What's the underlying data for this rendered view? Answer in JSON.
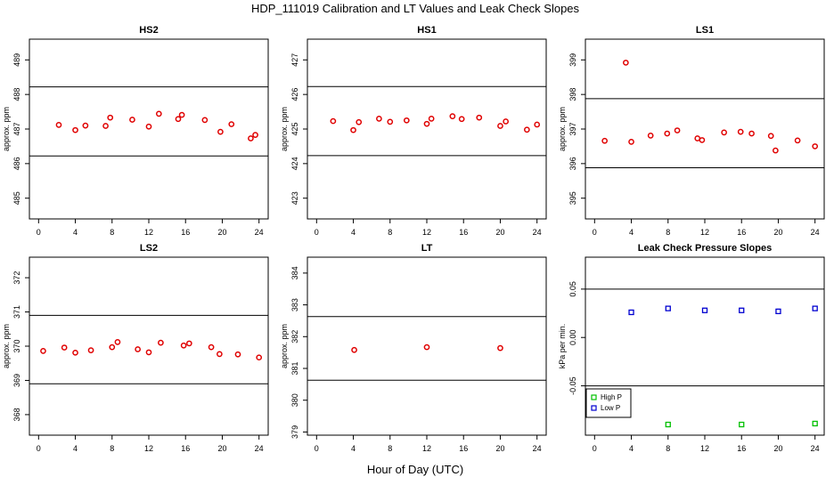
{
  "figure": {
    "title": "HDP_111019  Calibration and LT Values and Leak Check Slopes",
    "xlabel": "Hour of Day (UTC)"
  },
  "chart_data": [
    {
      "type": "scatter",
      "title": "HS2",
      "ylabel": "approx. ppm",
      "xlim": [
        -1,
        25
      ],
      "ylim": [
        484.4,
        489.6
      ],
      "xticks": [
        0,
        4,
        8,
        12,
        16,
        20,
        24
      ],
      "yticks": [
        485,
        486,
        487,
        488,
        489
      ],
      "hlines": [
        488.22,
        486.22
      ],
      "series": [
        {
          "marker": "circle",
          "color": "#e00000",
          "x": [
            2.2,
            4.0,
            5.1,
            7.3,
            7.8,
            10.2,
            12.0,
            13.1,
            15.2,
            15.6,
            18.1,
            19.8,
            21.0,
            23.1,
            23.6
          ],
          "y": [
            487.12,
            486.97,
            487.1,
            487.09,
            487.33,
            487.27,
            487.07,
            487.44,
            487.29,
            487.41,
            487.26,
            486.92,
            487.14,
            486.73,
            486.83
          ]
        }
      ]
    },
    {
      "type": "scatter",
      "title": "HS1",
      "ylabel": "approx. ppm",
      "xlim": [
        -1,
        25
      ],
      "ylim": [
        422.4,
        427.6
      ],
      "xticks": [
        0,
        4,
        8,
        12,
        16,
        20,
        24
      ],
      "yticks": [
        423,
        424,
        425,
        426,
        427
      ],
      "hlines": [
        426.23,
        424.23
      ],
      "series": [
        {
          "marker": "circle",
          "color": "#e00000",
          "x": [
            1.8,
            4.0,
            4.6,
            6.8,
            8.0,
            9.8,
            12.0,
            12.5,
            14.8,
            15.8,
            17.7,
            20.0,
            20.6,
            22.9,
            24.0
          ],
          "y": [
            425.23,
            424.97,
            425.2,
            425.3,
            425.21,
            425.25,
            425.15,
            425.3,
            425.37,
            425.29,
            425.33,
            425.09,
            425.22,
            424.98,
            425.13
          ]
        }
      ]
    },
    {
      "type": "scatter",
      "title": "LS1",
      "ylabel": "approx. ppm",
      "xlim": [
        -1,
        25
      ],
      "ylim": [
        394.4,
        399.6
      ],
      "xticks": [
        0,
        4,
        8,
        12,
        16,
        20,
        24
      ],
      "yticks": [
        395,
        396,
        397,
        398,
        399
      ],
      "hlines": [
        397.88,
        395.88
      ],
      "series": [
        {
          "marker": "circle",
          "color": "#e00000",
          "x": [
            1.1,
            3.4,
            4.0,
            6.1,
            7.9,
            9.0,
            11.2,
            11.7,
            14.1,
            15.9,
            17.1,
            19.2,
            19.7,
            22.1,
            24.0
          ],
          "y": [
            396.66,
            398.92,
            396.63,
            396.81,
            396.87,
            396.96,
            396.73,
            396.68,
            396.9,
            396.92,
            396.87,
            396.8,
            396.38,
            396.67,
            396.5
          ]
        }
      ]
    },
    {
      "type": "scatter",
      "title": "LS2",
      "ylabel": "approx. ppm",
      "xlim": [
        -1,
        25
      ],
      "ylim": [
        367.4,
        372.6
      ],
      "xticks": [
        0,
        4,
        8,
        12,
        16,
        20,
        24
      ],
      "yticks": [
        368,
        369,
        370,
        371,
        372
      ],
      "hlines": [
        370.9,
        368.9
      ],
      "series": [
        {
          "marker": "circle",
          "color": "#e00000",
          "x": [
            0.5,
            2.8,
            4.0,
            5.7,
            8.0,
            8.6,
            10.8,
            12.0,
            13.3,
            15.8,
            16.4,
            18.8,
            19.7,
            21.7,
            24.0
          ],
          "y": [
            369.86,
            369.96,
            369.81,
            369.88,
            369.97,
            370.12,
            369.91,
            369.82,
            370.1,
            370.02,
            370.08,
            369.97,
            369.77,
            369.76,
            369.67
          ]
        }
      ]
    },
    {
      "type": "scatter",
      "title": "LT",
      "ylabel": "approx. ppm",
      "xlim": [
        -1,
        25
      ],
      "ylim": [
        378.9,
        384.5
      ],
      "xticks": [
        0,
        4,
        8,
        12,
        16,
        20,
        24
      ],
      "yticks": [
        379,
        380,
        381,
        382,
        383,
        384
      ],
      "hlines": [
        382.63,
        380.63
      ],
      "series": [
        {
          "marker": "circle",
          "color": "#e00000",
          "x": [
            4.1,
            12.0,
            20.0
          ],
          "y": [
            381.58,
            381.67,
            381.64
          ]
        }
      ]
    },
    {
      "type": "scatter",
      "title": "Leak Check Pressure Slopes",
      "ylabel": "kPa per min.",
      "xlim": [
        -1,
        25
      ],
      "ylim": [
        -0.101,
        0.083
      ],
      "xticks": [
        0,
        4,
        8,
        12,
        16,
        20,
        24
      ],
      "yticks": [
        -0.05,
        0.0,
        0.05
      ],
      "ytick_labels": [
        "-0.05",
        "0.00",
        "0.05"
      ],
      "hlines": [
        0.05,
        -0.05
      ],
      "legend": {
        "placement": "bottom-left"
      },
      "series": [
        {
          "name": "High P",
          "marker": "square",
          "color": "#00c000",
          "x": [
            8,
            16,
            24
          ],
          "y": [
            -0.09,
            -0.09,
            -0.089
          ]
        },
        {
          "name": "Low P",
          "marker": "square",
          "color": "#0000d0",
          "x": [
            4,
            8,
            12,
            16,
            20,
            24
          ],
          "y": [
            0.026,
            0.03,
            0.028,
            0.028,
            0.027,
            0.03
          ]
        }
      ]
    }
  ]
}
